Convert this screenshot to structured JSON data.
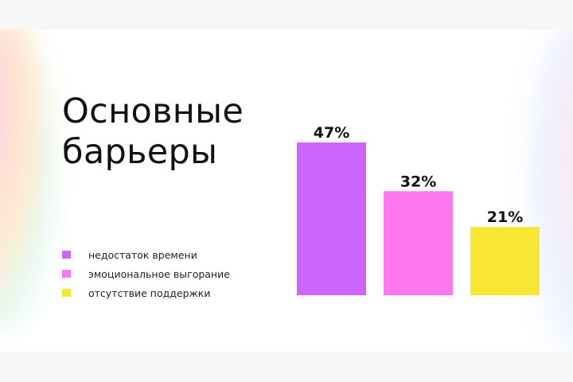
{
  "title": {
    "line1": "Основные",
    "line2": "барьеры"
  },
  "chart_data": {
    "type": "bar",
    "categories": [
      "недостаток времени",
      "эмоциональное выгорание",
      "отсутствие поддержки"
    ],
    "values": [
      47,
      32,
      21
    ],
    "data_labels": [
      "47%",
      "32%",
      "21%"
    ],
    "colors": [
      "#cc66ff",
      "#ff77ee",
      "#f7e734"
    ],
    "ylim": [
      0,
      47
    ],
    "grid": false,
    "legend_position": "left"
  },
  "legend": [
    {
      "label": "недостаток времени",
      "color": "#cc66ff"
    },
    {
      "label": "эмоциональное выгорание",
      "color": "#ff77ee"
    },
    {
      "label": "отсутствие поддержки",
      "color": "#f7e734"
    }
  ]
}
